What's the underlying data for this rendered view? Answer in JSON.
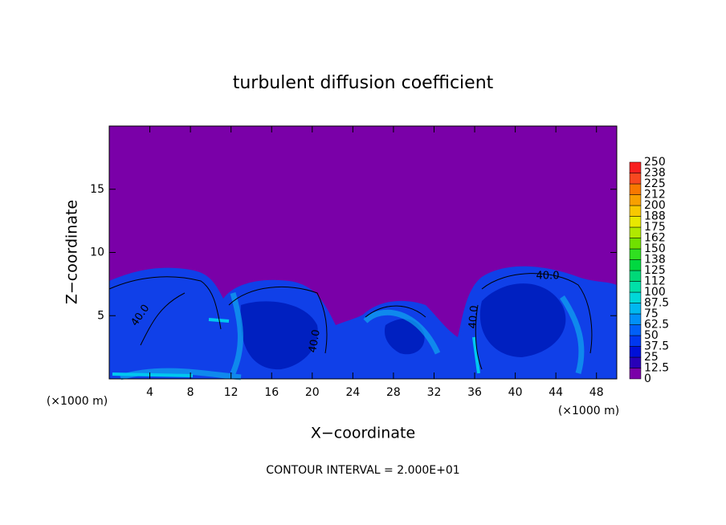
{
  "chart_data": {
    "type": "contour",
    "title": "turbulent diffusion coefficient",
    "xlabel": "X−coordinate",
    "ylabel": "Z−coordinate",
    "x_unit_left": "(×1000 m)",
    "x_unit_right": "(×1000 m)",
    "xlim": [
      0,
      50
    ],
    "ylim": [
      0,
      20
    ],
    "xticks": [
      4,
      8,
      12,
      16,
      20,
      24,
      28,
      32,
      36,
      40,
      44,
      48
    ],
    "yticks": [
      5,
      10,
      15
    ],
    "contour_labels": [
      "40.0",
      "40.0",
      "40.0",
      "40.0"
    ],
    "annotation": "CONTOUR INTERVAL = 2.000E+01",
    "colorbar": {
      "levels": [
        0,
        12.5,
        25,
        37.5,
        50,
        62.5,
        75,
        87.5,
        100,
        112,
        125,
        138,
        150,
        162,
        175,
        188,
        200,
        212,
        225,
        238,
        250
      ],
      "colors": [
        "#7a00a8",
        "#2800b8",
        "#0010d8",
        "#0038f0",
        "#0060f8",
        "#0090f8",
        "#00b8f0",
        "#00d8d8",
        "#00e0a8",
        "#00d878",
        "#00d840",
        "#30e020",
        "#70e000",
        "#b0e800",
        "#e8e800",
        "#f8c800",
        "#f8a000",
        "#f87800",
        "#f84820",
        "#f82020"
      ]
    }
  }
}
